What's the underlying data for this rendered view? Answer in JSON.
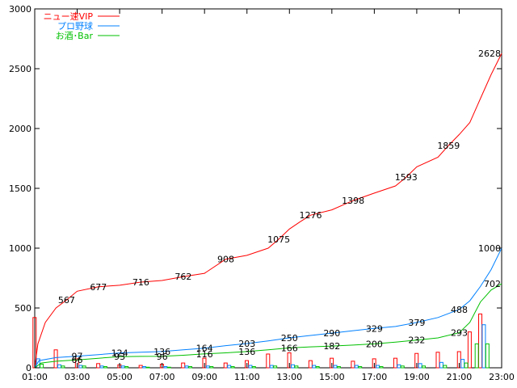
{
  "chart_data": {
    "type": "line",
    "title": "",
    "xlabel": "",
    "ylabel": "",
    "xlim": [
      1,
      23
    ],
    "ylim": [
      0,
      3000
    ],
    "grid": false,
    "legend_position": "top-left",
    "y_ticks": [
      "0",
      "500",
      "1000",
      "1500",
      "2000",
      "2500",
      "3000"
    ],
    "x_ticks": [
      "01:00",
      "03:00",
      "05:00",
      "07:00",
      "09:00",
      "11:00",
      "13:00",
      "15:00",
      "17:00",
      "19:00",
      "21:00",
      "23:00"
    ],
    "series": [
      {
        "name": "ニュー速VIP",
        "color": "#ff0000",
        "cumulative": [
          [
            1.0,
            0
          ],
          [
            1.15,
            200
          ],
          [
            1.5,
            380
          ],
          [
            2.0,
            500
          ],
          [
            2.5,
            567
          ],
          [
            3.0,
            640
          ],
          [
            4.0,
            677
          ],
          [
            5.0,
            690
          ],
          [
            6.0,
            716
          ],
          [
            7.0,
            730
          ],
          [
            8.0,
            762
          ],
          [
            9.0,
            790
          ],
          [
            10.0,
            908
          ],
          [
            11.0,
            940
          ],
          [
            12.0,
            1000
          ],
          [
            12.5,
            1075
          ],
          [
            13.0,
            1160
          ],
          [
            13.5,
            1220
          ],
          [
            14.0,
            1276
          ],
          [
            15.0,
            1320
          ],
          [
            16.0,
            1398
          ],
          [
            17.0,
            1460
          ],
          [
            18.0,
            1520
          ],
          [
            18.5,
            1593
          ],
          [
            19.0,
            1680
          ],
          [
            20.0,
            1760
          ],
          [
            20.5,
            1859
          ],
          [
            21.0,
            1950
          ],
          [
            21.5,
            2050
          ],
          [
            22.0,
            2250
          ],
          [
            22.5,
            2450
          ],
          [
            23.0,
            2628
          ]
        ],
        "labels": [
          {
            "x": 2.5,
            "text": "567"
          },
          {
            "x": 4.0,
            "text": "677"
          },
          {
            "x": 6.0,
            "text": "716"
          },
          {
            "x": 8.0,
            "text": "762"
          },
          {
            "x": 10.0,
            "text": "908"
          },
          {
            "x": 12.5,
            "text": "1075"
          },
          {
            "x": 14.0,
            "text": "1276"
          },
          {
            "x": 16.0,
            "text": "1398"
          },
          {
            "x": 18.5,
            "text": "1593"
          },
          {
            "x": 20.5,
            "text": "1859"
          },
          {
            "x": 23.0,
            "text": "2628"
          }
        ],
        "bars": [
          [
            1.0,
            420
          ],
          [
            2.0,
            150
          ],
          [
            3.0,
            75
          ],
          [
            4.0,
            35
          ],
          [
            5.0,
            25
          ],
          [
            6.0,
            20
          ],
          [
            7.0,
            30
          ],
          [
            8.0,
            40
          ],
          [
            9.0,
            80
          ],
          [
            10.0,
            40
          ],
          [
            11.0,
            60
          ],
          [
            12.0,
            115
          ],
          [
            13.0,
            125
          ],
          [
            14.0,
            60
          ],
          [
            15.0,
            80
          ],
          [
            16.0,
            55
          ],
          [
            17.0,
            75
          ],
          [
            18.0,
            80
          ],
          [
            19.0,
            120
          ],
          [
            20.0,
            130
          ],
          [
            21.0,
            135
          ],
          [
            21.5,
            300
          ],
          [
            22.0,
            450
          ]
        ]
      },
      {
        "name": "プロ野球",
        "color": "#0080ff",
        "cumulative": [
          [
            1.0,
            0
          ],
          [
            1.2,
            60
          ],
          [
            2.0,
            85
          ],
          [
            3.0,
            97
          ],
          [
            4.0,
            110
          ],
          [
            5.0,
            124
          ],
          [
            6.0,
            130
          ],
          [
            7.0,
            136
          ],
          [
            8.0,
            150
          ],
          [
            9.0,
            164
          ],
          [
            10.0,
            185
          ],
          [
            11.0,
            203
          ],
          [
            12.0,
            225
          ],
          [
            13.0,
            250
          ],
          [
            14.0,
            270
          ],
          [
            15.0,
            290
          ],
          [
            16.0,
            310
          ],
          [
            17.0,
            329
          ],
          [
            18.0,
            345
          ],
          [
            19.0,
            379
          ],
          [
            20.0,
            420
          ],
          [
            21.0,
            488
          ],
          [
            21.5,
            560
          ],
          [
            22.0,
            680
          ],
          [
            22.5,
            820
          ],
          [
            23.0,
            1000
          ]
        ],
        "labels": [
          {
            "x": 3.0,
            "text": "97"
          },
          {
            "x": 5.0,
            "text": "124"
          },
          {
            "x": 7.0,
            "text": "136"
          },
          {
            "x": 9.0,
            "text": "164"
          },
          {
            "x": 11.0,
            "text": "203"
          },
          {
            "x": 13.0,
            "text": "250"
          },
          {
            "x": 15.0,
            "text": "290"
          },
          {
            "x": 17.0,
            "text": "329"
          },
          {
            "x": 19.0,
            "text": "379"
          },
          {
            "x": 21.0,
            "text": "488"
          },
          {
            "x": 23.0,
            "text": "1000"
          }
        ],
        "bars": [
          [
            1.0,
            75
          ],
          [
            2.0,
            25
          ],
          [
            3.0,
            20
          ],
          [
            4.0,
            15
          ],
          [
            5.0,
            15
          ],
          [
            6.0,
            10
          ],
          [
            7.0,
            10
          ],
          [
            8.0,
            15
          ],
          [
            9.0,
            15
          ],
          [
            10.0,
            20
          ],
          [
            11.0,
            20
          ],
          [
            12.0,
            20
          ],
          [
            13.0,
            25
          ],
          [
            14.0,
            20
          ],
          [
            15.0,
            20
          ],
          [
            16.0,
            20
          ],
          [
            17.0,
            20
          ],
          [
            18.0,
            25
          ],
          [
            19.0,
            35
          ],
          [
            20.0,
            45
          ],
          [
            21.0,
            70
          ],
          [
            22.0,
            360
          ]
        ]
      },
      {
        "name": "お酒･Bar",
        "color": "#00c000",
        "cumulative": [
          [
            1.0,
            0
          ],
          [
            1.3,
            40
          ],
          [
            2.0,
            55
          ],
          [
            3.0,
            66
          ],
          [
            4.0,
            80
          ],
          [
            5.0,
            93
          ],
          [
            6.0,
            95
          ],
          [
            7.0,
            96
          ],
          [
            8.0,
            105
          ],
          [
            9.0,
            116
          ],
          [
            10.0,
            125
          ],
          [
            11.0,
            136
          ],
          [
            12.0,
            150
          ],
          [
            13.0,
            166
          ],
          [
            14.0,
            175
          ],
          [
            15.0,
            182
          ],
          [
            16.0,
            190
          ],
          [
            17.0,
            200
          ],
          [
            18.0,
            215
          ],
          [
            19.0,
            232
          ],
          [
            20.0,
            250
          ],
          [
            21.0,
            293
          ],
          [
            21.5,
            380
          ],
          [
            22.0,
            550
          ],
          [
            22.5,
            650
          ],
          [
            23.0,
            702
          ]
        ],
        "labels": [
          {
            "x": 3.0,
            "text": "66"
          },
          {
            "x": 5.0,
            "text": "93"
          },
          {
            "x": 7.0,
            "text": "96"
          },
          {
            "x": 9.0,
            "text": "116"
          },
          {
            "x": 11.0,
            "text": "136"
          },
          {
            "x": 13.0,
            "text": "166"
          },
          {
            "x": 15.0,
            "text": "182"
          },
          {
            "x": 17.0,
            "text": "200"
          },
          {
            "x": 19.0,
            "text": "232"
          },
          {
            "x": 21.0,
            "text": "293"
          },
          {
            "x": 23.0,
            "text": "702"
          }
        ],
        "bars": [
          [
            1.0,
            30
          ],
          [
            2.0,
            15
          ],
          [
            3.0,
            15
          ],
          [
            4.0,
            10
          ],
          [
            5.0,
            10
          ],
          [
            6.0,
            5
          ],
          [
            7.0,
            5
          ],
          [
            8.0,
            10
          ],
          [
            9.0,
            10
          ],
          [
            10.0,
            10
          ],
          [
            11.0,
            10
          ],
          [
            12.0,
            15
          ],
          [
            13.0,
            15
          ],
          [
            14.0,
            10
          ],
          [
            15.0,
            10
          ],
          [
            16.0,
            10
          ],
          [
            17.0,
            10
          ],
          [
            18.0,
            15
          ],
          [
            19.0,
            15
          ],
          [
            20.0,
            20
          ],
          [
            21.0,
            40
          ],
          [
            21.5,
            200
          ],
          [
            22.0,
            200
          ]
        ]
      }
    ]
  }
}
